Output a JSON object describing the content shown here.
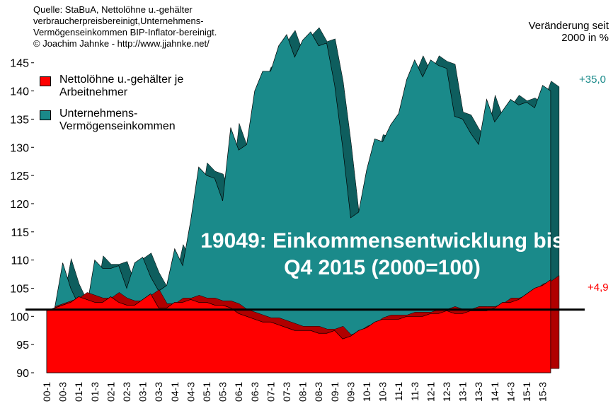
{
  "chart_data": {
    "type": "area",
    "title": "19049: Einkommensentwicklung bis Q4 2015 (2000=100)",
    "source": [
      "Quelle: StaBuA, Nettolöhne u.-gehälter",
      "verbraucherpreisbereinigt,Unternehmens-",
      "Vermögenseinkommen BIP-Inflator-bereinigt.",
      "© Joachim Jahnke - http://www.jjahnke.net/"
    ],
    "note": "Veränderung seit 2000 in %",
    "annotations": [
      {
        "text": "+35,0",
        "color": "#1a8a8a"
      },
      {
        "text": "+4,9",
        "color": "#ff0000"
      }
    ],
    "categories": [
      "00-1",
      null,
      "00-3",
      null,
      "01-1",
      null,
      "01-3",
      null,
      "02-1",
      null,
      "02-3",
      null,
      "03-1",
      null,
      "03-3",
      null,
      "04-1",
      null,
      "04-3",
      null,
      "05-1",
      null,
      "05-3",
      null,
      "06-1",
      null,
      "06-3",
      null,
      "07-1",
      null,
      "07-3",
      null,
      "08-1",
      null,
      "08-3",
      null,
      "09-1",
      null,
      "09-3",
      null,
      "10-1",
      null,
      "10-3",
      null,
      "11-1",
      null,
      "11-3",
      null,
      "12-1",
      null,
      "12-3",
      null,
      "13-1",
      null,
      "13-3",
      null,
      "14-1",
      null,
      "14-3",
      null,
      "15-1",
      null,
      "15-3",
      null
    ],
    "series": [
      {
        "name": "Nettolöhne u.-gehälter je Arbeitnehmer",
        "color": "#ff0000",
        "values": [
          101,
          101.5,
          102,
          102.5,
          103.5,
          103,
          102.5,
          102.5,
          103.5,
          102.5,
          102,
          102,
          103,
          104,
          101.5,
          101.5,
          102.5,
          102.5,
          103,
          102.5,
          102.5,
          102,
          102,
          101.5,
          100.5,
          100,
          99.5,
          99,
          99,
          98.5,
          98,
          97.5,
          97.5,
          97.5,
          97,
          97,
          97.5,
          96,
          96.5,
          97.5,
          98,
          99,
          99.5,
          99.5,
          99.5,
          100,
          100,
          100,
          100.5,
          100.5,
          101,
          100.5,
          100.5,
          101,
          101,
          101,
          101.5,
          102.5,
          102.5,
          103,
          104,
          105,
          105.5,
          106.5
        ]
      },
      {
        "name": "Unternehmens-Vermögenseinkommen",
        "color": "#1a8a8a",
        "values": [
          101,
          101.5,
          109.5,
          105,
          102,
          101.5,
          110,
          108.5,
          108.5,
          109,
          105,
          109.5,
          110.5,
          107,
          104.5,
          105.5,
          112,
          109,
          117,
          126.5,
          125,
          124.5,
          120.5,
          133.5,
          129.5,
          130.5,
          140,
          143.5,
          143.5,
          148,
          150,
          146,
          149,
          150.5,
          148,
          148.5,
          141,
          130,
          117.5,
          118.5,
          126,
          131.5,
          131,
          134,
          136,
          142,
          145.5,
          142.5,
          145.5,
          144.5,
          144,
          135.5,
          135,
          132.5,
          130.5,
          138.5,
          134.5,
          136.5,
          138.5,
          137.5,
          138,
          137,
          141,
          140
        ]
      }
    ],
    "hline": 101.2,
    "ylim": [
      90,
      153
    ],
    "yticks": [
      90,
      95,
      100,
      105,
      110,
      115,
      120,
      125,
      130,
      135,
      140,
      145
    ],
    "grid": false
  }
}
